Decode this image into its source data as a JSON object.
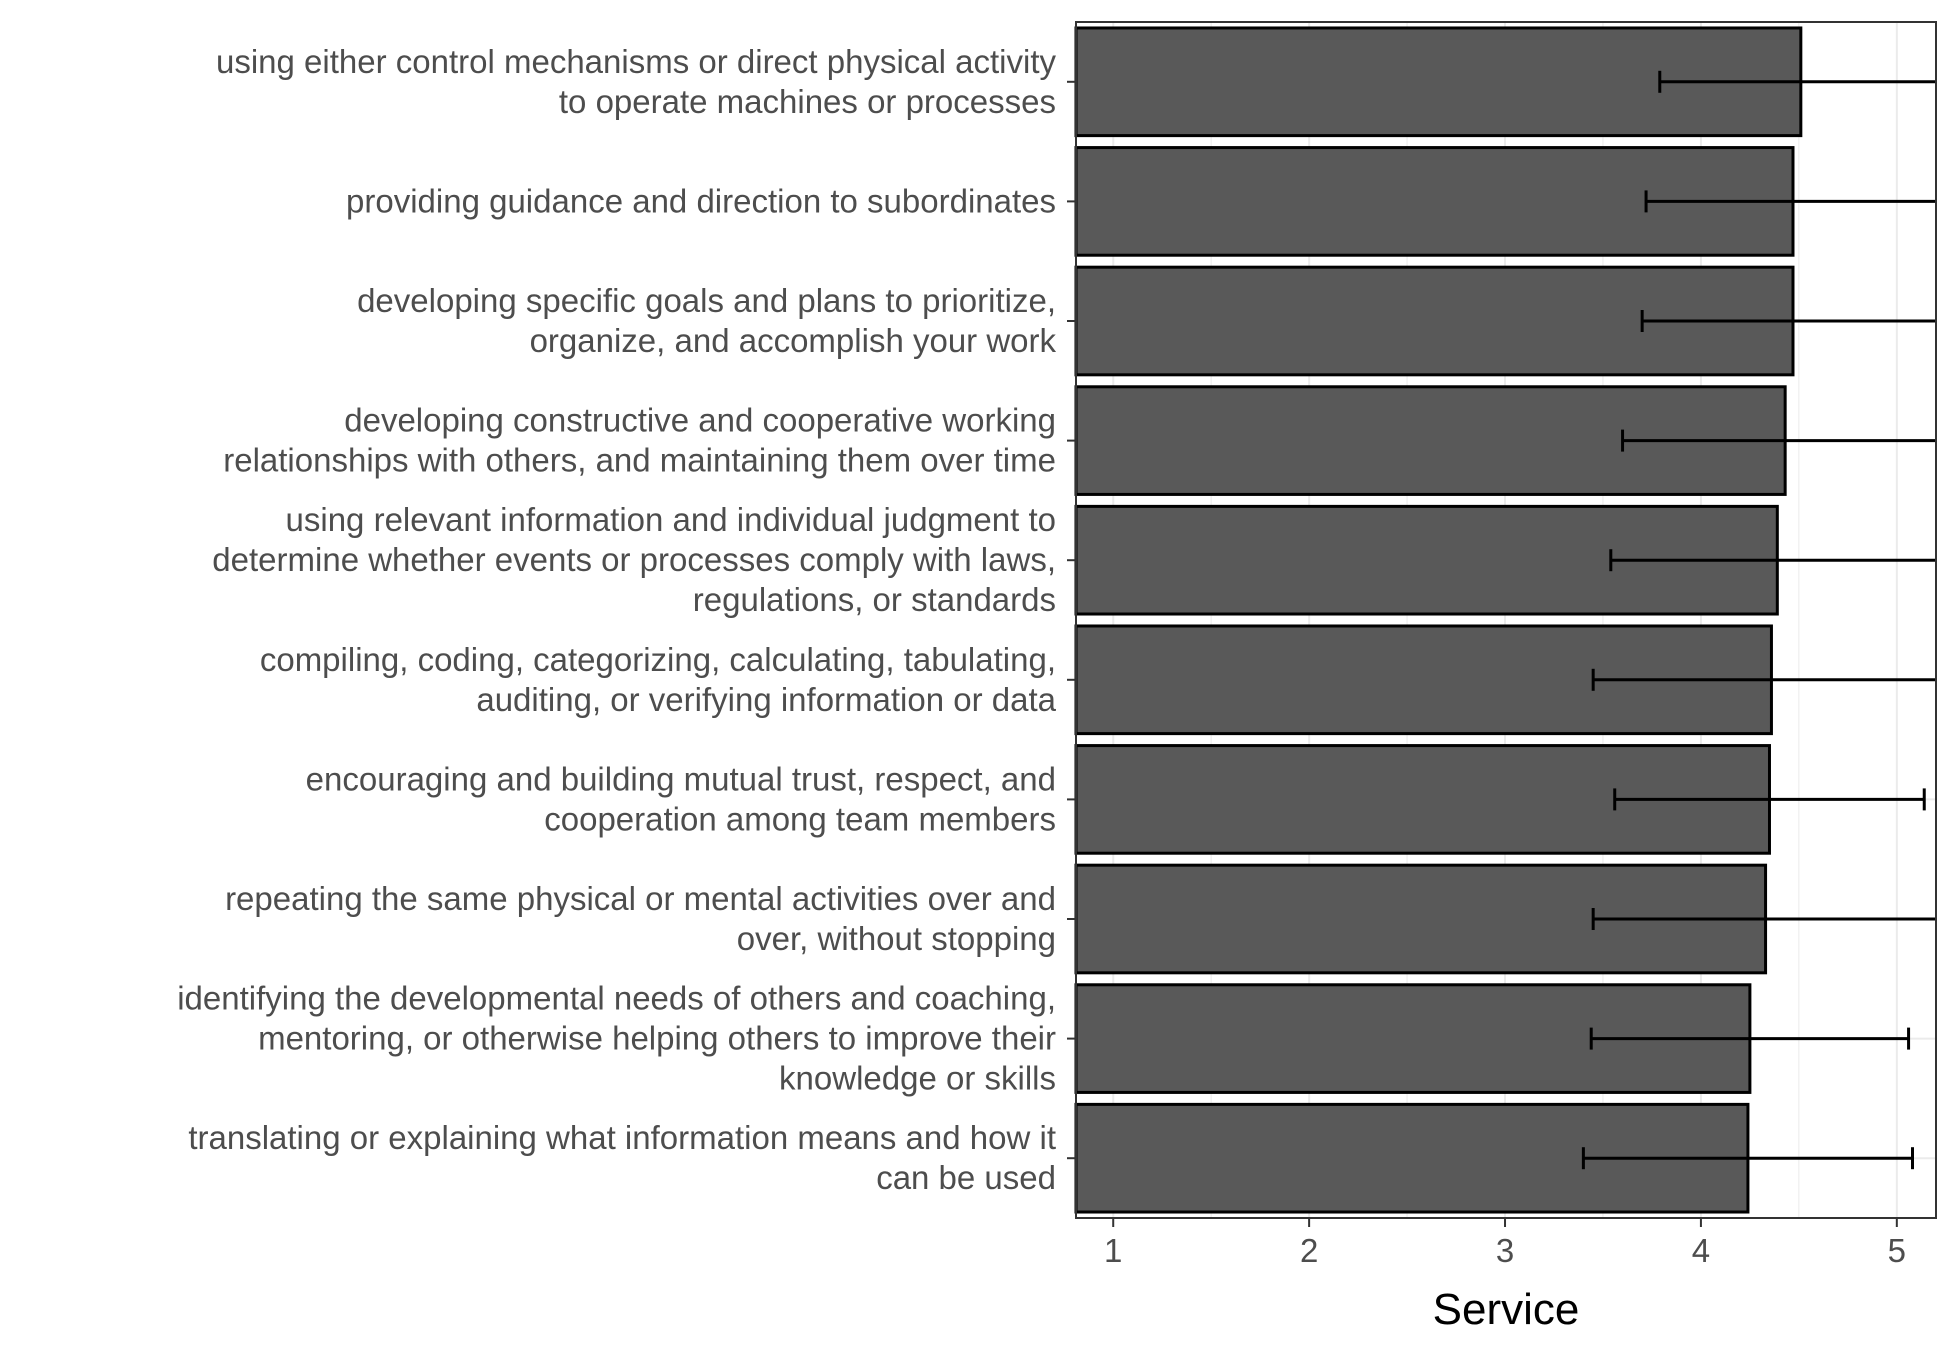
{
  "chart_data": {
    "type": "bar",
    "orientation": "horizontal",
    "xlabel": "Service",
    "ylabel": "",
    "title": "",
    "xlim": [
      0.81,
      5.2
    ],
    "xticks": [
      1,
      2,
      3,
      4,
      5
    ],
    "grid": true,
    "legend": "none",
    "categories": [
      [
        "using either control mechanisms or direct physical activity",
        "to operate machines or processes"
      ],
      [
        "providing guidance and direction to subordinates"
      ],
      [
        "developing specific goals and plans to prioritize,",
        "organize, and accomplish your work"
      ],
      [
        "developing constructive and cooperative working",
        "relationships with others, and maintaining them over time"
      ],
      [
        "using relevant information and individual judgment to",
        "determine whether events or processes comply with laws,",
        "regulations, or standards"
      ],
      [
        "compiling, coding, categorizing, calculating, tabulating,",
        "auditing, or verifying information or data"
      ],
      [
        "encouraging and building mutual trust, respect, and",
        "cooperation among team members"
      ],
      [
        "repeating the same physical or mental activities over and",
        "over, without stopping"
      ],
      [
        "identifying the developmental needs of others and coaching,",
        "mentoring, or otherwise helping others to improve their",
        "knowledge or skills"
      ],
      [
        "translating or explaining what information means and how it",
        "can be used"
      ]
    ],
    "values": [
      4.51,
      4.47,
      4.47,
      4.43,
      4.39,
      4.36,
      4.35,
      4.33,
      4.25,
      4.24
    ],
    "error_low": [
      3.79,
      3.72,
      3.7,
      3.6,
      3.54,
      3.45,
      3.56,
      3.45,
      3.44,
      3.4
    ],
    "error_high": [
      5.23,
      5.22,
      5.24,
      5.26,
      5.24,
      5.27,
      5.14,
      5.21,
      5.06,
      5.08
    ],
    "colors": {
      "bar_fill": "#595959",
      "bar_stroke": "#000000",
      "grid": "#ebebeb",
      "text": "#4d4d4d"
    }
  }
}
